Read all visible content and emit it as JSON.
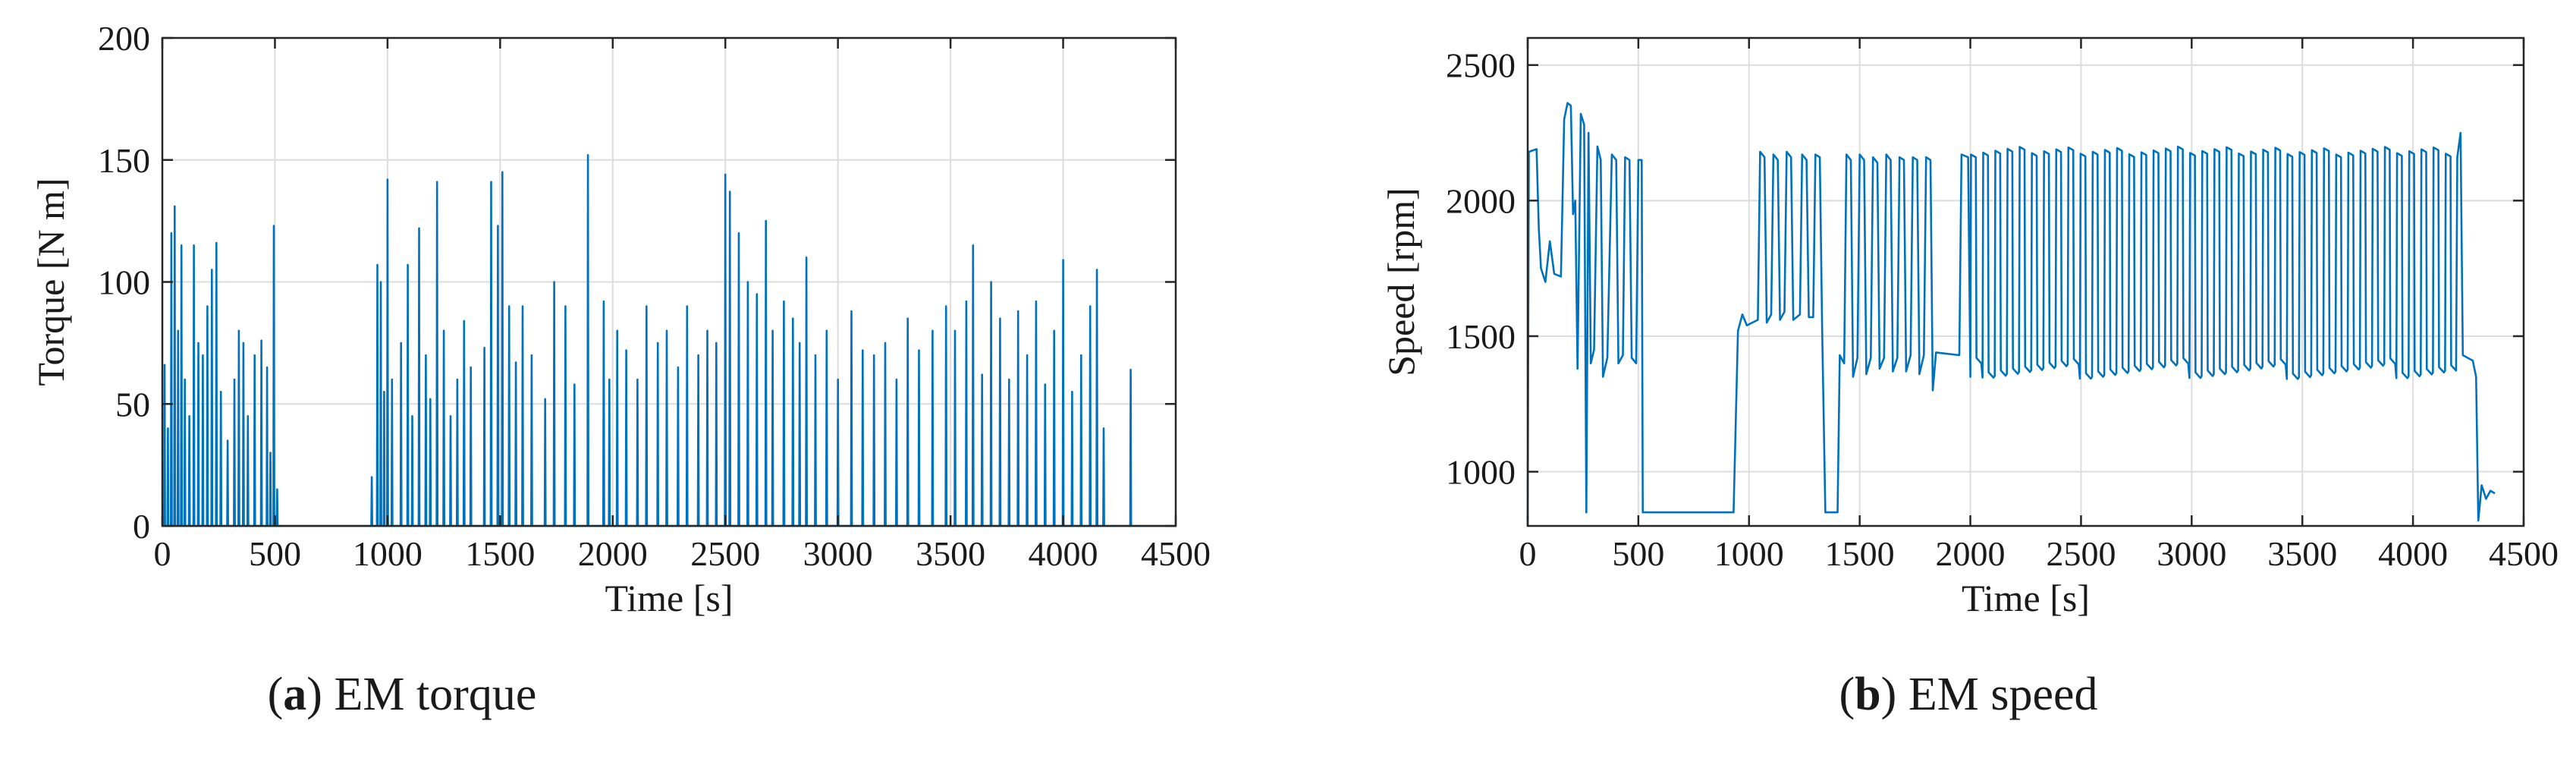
{
  "colors": {
    "line": "#0072BD",
    "grid": "#dcdcdc",
    "axis": "#262626"
  },
  "captions": [
    {
      "letter": "a",
      "text": "EM torque"
    },
    {
      "letter": "b",
      "text": "EM speed"
    }
  ],
  "chart_data": [
    {
      "type": "line",
      "title": "",
      "xlabel": "Time [s]",
      "ylabel": "Torque [N m]",
      "xlim": [
        0,
        4500
      ],
      "ylim": [
        0,
        200
      ],
      "xticks": [
        0,
        500,
        1000,
        1500,
        2000,
        2500,
        3000,
        3500,
        4000,
        4500
      ],
      "yticks": [
        0,
        50,
        100,
        150,
        200
      ],
      "grid": true,
      "series": [
        {
          "peaks": [
            [
              10,
              66
            ],
            [
              25,
              40
            ],
            [
              40,
              120
            ],
            [
              55,
              131
            ],
            [
              70,
              80
            ],
            [
              85,
              115
            ],
            [
              100,
              60
            ],
            [
              120,
              45
            ],
            [
              140,
              115
            ],
            [
              160,
              75
            ],
            [
              180,
              70
            ],
            [
              200,
              90
            ],
            [
              220,
              105
            ],
            [
              240,
              116
            ],
            [
              260,
              55
            ],
            [
              290,
              35
            ],
            [
              320,
              60
            ],
            [
              340,
              80
            ],
            [
              360,
              75
            ],
            [
              380,
              45
            ],
            [
              410,
              70
            ],
            [
              440,
              76
            ],
            [
              465,
              65
            ],
            [
              480,
              30
            ],
            [
              495,
              123
            ],
            [
              510,
              15
            ],
            [
              930,
              20
            ],
            [
              955,
              107
            ],
            [
              970,
              100
            ],
            [
              985,
              55
            ],
            [
              1000,
              142
            ],
            [
              1020,
              60
            ],
            [
              1060,
              75
            ],
            [
              1090,
              107
            ],
            [
              1110,
              45
            ],
            [
              1140,
              122
            ],
            [
              1170,
              70
            ],
            [
              1190,
              52
            ],
            [
              1220,
              141
            ],
            [
              1250,
              80
            ],
            [
              1280,
              45
            ],
            [
              1310,
              60
            ],
            [
              1340,
              84
            ],
            [
              1370,
              65
            ],
            [
              1430,
              73
            ],
            [
              1460,
              141
            ],
            [
              1490,
              123
            ],
            [
              1510,
              145
            ],
            [
              1540,
              90
            ],
            [
              1570,
              67
            ],
            [
              1600,
              90
            ],
            [
              1640,
              70
            ],
            [
              1700,
              52
            ],
            [
              1740,
              100
            ],
            [
              1790,
              90
            ],
            [
              1830,
              58
            ],
            [
              1890,
              152
            ],
            [
              1960,
              92
            ],
            [
              1985,
              60
            ],
            [
              2020,
              80
            ],
            [
              2060,
              72
            ],
            [
              2110,
              60
            ],
            [
              2150,
              90
            ],
            [
              2200,
              75
            ],
            [
              2240,
              80
            ],
            [
              2290,
              65
            ],
            [
              2330,
              90
            ],
            [
              2380,
              70
            ],
            [
              2420,
              80
            ],
            [
              2460,
              75
            ],
            [
              2500,
              144
            ],
            [
              2520,
              137
            ],
            [
              2560,
              120
            ],
            [
              2600,
              100
            ],
            [
              2640,
              95
            ],
            [
              2680,
              125
            ],
            [
              2710,
              80
            ],
            [
              2760,
              92
            ],
            [
              2800,
              85
            ],
            [
              2830,
              75
            ],
            [
              2860,
              110
            ],
            [
              2900,
              70
            ],
            [
              2950,
              80
            ],
            [
              3000,
              60
            ],
            [
              3060,
              88
            ],
            [
              3110,
              72
            ],
            [
              3160,
              70
            ],
            [
              3210,
              75
            ],
            [
              3260,
              60
            ],
            [
              3310,
              85
            ],
            [
              3360,
              72
            ],
            [
              3420,
              80
            ],
            [
              3480,
              90
            ],
            [
              3520,
              80
            ],
            [
              3570,
              92
            ],
            [
              3600,
              115
            ],
            [
              3640,
              62
            ],
            [
              3680,
              100
            ],
            [
              3720,
              85
            ],
            [
              3760,
              60
            ],
            [
              3800,
              88
            ],
            [
              3840,
              70
            ],
            [
              3880,
              92
            ],
            [
              3920,
              58
            ],
            [
              3960,
              80
            ],
            [
              4000,
              109
            ],
            [
              4040,
              55
            ],
            [
              4080,
              70
            ],
            [
              4120,
              90
            ],
            [
              4150,
              105
            ],
            [
              4180,
              40
            ],
            [
              4300,
              64
            ]
          ]
        }
      ]
    },
    {
      "type": "line",
      "title": "",
      "xlabel": "Time [s]",
      "ylabel": "Speed [rpm]",
      "xlim": [
        0,
        4500
      ],
      "ylim": [
        800,
        2600
      ],
      "xticks": [
        0,
        500,
        1000,
        1500,
        2000,
        2500,
        3000,
        3500,
        4000,
        4500
      ],
      "yticks": [
        1000,
        1500,
        2000,
        2500
      ],
      "grid": true,
      "series": [
        {
          "segments": [
            [
              0,
              820
            ],
            [
              5,
              2180
            ],
            [
              40,
              2190
            ],
            [
              50,
              1900
            ],
            [
              60,
              1750
            ],
            [
              80,
              1700
            ],
            [
              100,
              1850
            ],
            [
              120,
              1730
            ],
            [
              150,
              1720
            ],
            [
              165,
              2300
            ],
            [
              180,
              2360
            ],
            [
              195,
              2350
            ],
            [
              205,
              1950
            ],
            [
              215,
              2000
            ],
            [
              225,
              1380
            ],
            [
              240,
              2320
            ],
            [
              255,
              2280
            ],
            [
              265,
              850
            ],
            [
              275,
              2250
            ],
            [
              285,
              1400
            ],
            [
              300,
              1450
            ],
            [
              315,
              2200
            ],
            [
              330,
              2150
            ],
            [
              340,
              1350
            ],
            [
              360,
              1420
            ],
            [
              380,
              2170
            ],
            [
              400,
              2150
            ],
            [
              410,
              1400
            ],
            [
              430,
              1430
            ],
            [
              440,
              2160
            ],
            [
              460,
              2150
            ],
            [
              470,
              1420
            ],
            [
              490,
              1400
            ],
            [
              500,
              2150
            ],
            [
              515,
              2150
            ],
            [
              520,
              850
            ],
            [
              930,
              850
            ],
            [
              950,
              1520
            ],
            [
              970,
              1580
            ],
            [
              990,
              1540
            ],
            [
              1040,
              1560
            ],
            [
              1050,
              2180
            ],
            [
              1070,
              2160
            ],
            [
              1080,
              1550
            ],
            [
              1100,
              1580
            ],
            [
              1110,
              2170
            ],
            [
              1130,
              2150
            ],
            [
              1140,
              1560
            ],
            [
              1160,
              1590
            ],
            [
              1170,
              2180
            ],
            [
              1190,
              2160
            ],
            [
              1200,
              1560
            ],
            [
              1230,
              1580
            ],
            [
              1240,
              2170
            ],
            [
              1260,
              2150
            ],
            [
              1270,
              1570
            ],
            [
              1290,
              1570
            ],
            [
              1300,
              2170
            ],
            [
              1320,
              2160
            ],
            [
              1330,
              1540
            ],
            [
              1345,
              850
            ],
            [
              1400,
              850
            ],
            [
              1410,
              1430
            ],
            [
              1430,
              1400
            ],
            [
              1440,
              2170
            ],
            [
              1460,
              2150
            ],
            [
              1470,
              1350
            ],
            [
              1490,
              1420
            ],
            [
              1500,
              2170
            ],
            [
              1520,
              2150
            ],
            [
              1530,
              1360
            ],
            [
              1550,
              1420
            ],
            [
              1560,
              2160
            ],
            [
              1580,
              2140
            ],
            [
              1590,
              1380
            ],
            [
              1610,
              1420
            ],
            [
              1620,
              2170
            ],
            [
              1640,
              2150
            ],
            [
              1650,
              1370
            ],
            [
              1670,
              1420
            ],
            [
              1680,
              2160
            ],
            [
              1700,
              2150
            ],
            [
              1710,
              1370
            ],
            [
              1730,
              1430
            ],
            [
              1740,
              2160
            ],
            [
              1760,
              2150
            ],
            [
              1770,
              1360
            ],
            [
              1790,
              1430
            ],
            [
              1800,
              2160
            ],
            [
              1820,
              2150
            ],
            [
              1830,
              1300
            ],
            [
              1845,
              1440
            ],
            [
              1950,
              1430
            ],
            [
              1960,
              2170
            ],
            [
              1990,
              2160
            ],
            [
              2000,
              1350
            ]
          ],
          "pulse_train": {
            "start": 2000,
            "end": 4200,
            "period": 55,
            "high": 2170,
            "low": 1400,
            "high_max": 2200,
            "low_min": 1330
          },
          "tail": [
            [
              4200,
              2160
            ],
            [
              4215,
              2250
            ],
            [
              4225,
              1430
            ],
            [
              4270,
              1410
            ],
            [
              4285,
              1350
            ],
            [
              4295,
              820
            ],
            [
              4310,
              950
            ],
            [
              4330,
              900
            ],
            [
              4350,
              930
            ],
            [
              4370,
              920
            ]
          ]
        }
      ]
    }
  ]
}
